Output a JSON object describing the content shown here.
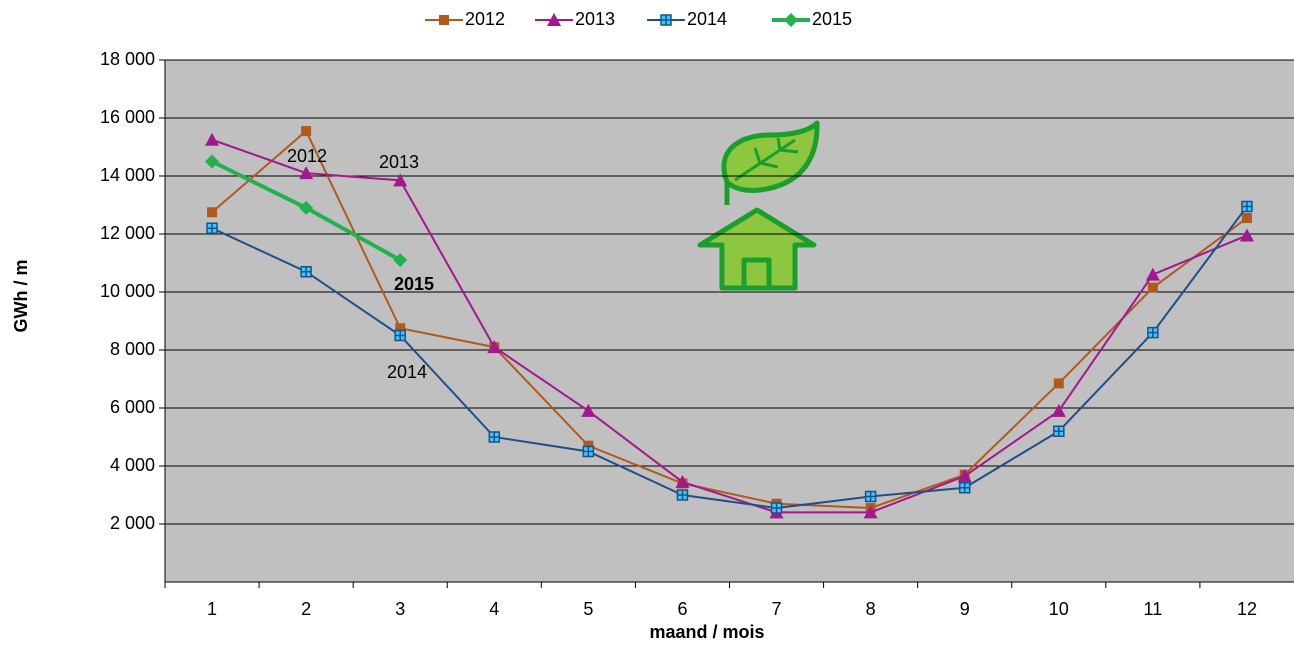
{
  "chart_data": {
    "type": "line",
    "categories": [
      1,
      2,
      3,
      4,
      5,
      6,
      7,
      8,
      9,
      10,
      11,
      12
    ],
    "series": [
      {
        "name": "2012",
        "color": "#b05a1e",
        "marker": "square",
        "values": [
          12750,
          15550,
          8750,
          8100,
          4700,
          3400,
          2700,
          2550,
          3700,
          6850,
          10150,
          12550
        ]
      },
      {
        "name": "2013",
        "color": "#a3178f",
        "marker": "triangle",
        "values": [
          15250,
          14100,
          13850,
          8100,
          5900,
          3450,
          2400,
          2400,
          3650,
          5900,
          10600,
          11950
        ]
      },
      {
        "name": "2014",
        "color": "#1f4e8c",
        "marker": "square-cross",
        "values": [
          12200,
          10700,
          8500,
          5000,
          4500,
          3000,
          2550,
          2950,
          3250,
          5200,
          8600,
          12950
        ]
      },
      {
        "name": "2015",
        "color": "#22b14c",
        "marker": "diamond",
        "values": [
          14500,
          12900,
          11100,
          null,
          null,
          null,
          null,
          null,
          null,
          null,
          null,
          null
        ]
      }
    ],
    "ylim": [
      0,
      18000
    ],
    "yticks": [
      {
        "value": 2000,
        "label": "2 000"
      },
      {
        "value": 4000,
        "label": "4 000"
      },
      {
        "value": 6000,
        "label": "6 000"
      },
      {
        "value": 8000,
        "label": "8 000"
      },
      {
        "value": 10000,
        "label": "10 000"
      },
      {
        "value": 12000,
        "label": "12 000"
      },
      {
        "value": 14000,
        "label": "14 000"
      },
      {
        "value": 16000,
        "label": "16 000"
      },
      {
        "value": 18000,
        "label": "18 000"
      }
    ],
    "grid": true,
    "legend": "top",
    "y_label": "GWh / m",
    "x_label": "maand / mois",
    "annotations": [
      "2012",
      "2013",
      "2015",
      "2014"
    ]
  }
}
